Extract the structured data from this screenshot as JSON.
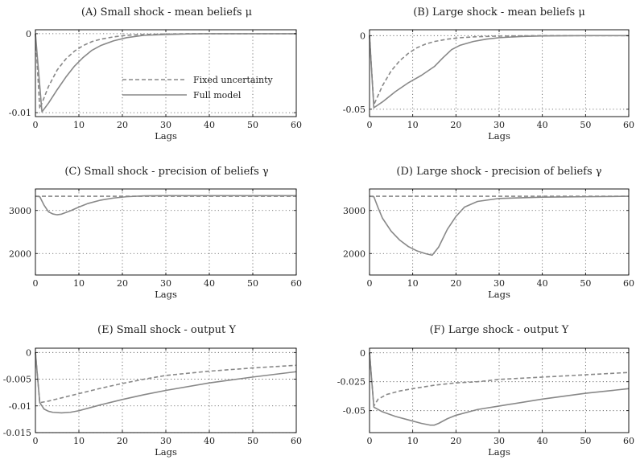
{
  "line_color": "#888888",
  "chart_data": [
    {
      "id": "A",
      "type": "line",
      "title": "(A) Small shock - mean beliefs μ",
      "xlabel": "Lags",
      "xlim": [
        0,
        60
      ],
      "ylim": [
        -0.0105,
        0.0005
      ],
      "xticks": [
        0,
        10,
        20,
        30,
        40,
        50,
        60
      ],
      "yticks": [
        {
          "v": 0,
          "label": "0"
        },
        {
          "v": -0.01,
          "label": "-0.01"
        }
      ],
      "grid": true,
      "legend": {
        "position": "right",
        "entries": [
          "Fixed uncertainty",
          "Full model"
        ]
      },
      "series": [
        {
          "name": "Fixed uncertainty",
          "style": "dashed",
          "x": [
            0,
            1,
            3,
            5,
            7,
            9,
            11,
            13,
            15,
            18,
            21,
            25,
            30,
            35,
            40,
            50,
            60
          ],
          "y": [
            0,
            -0.0095,
            -0.0067,
            -0.0046,
            -0.0032,
            -0.0022,
            -0.0015,
            -0.001,
            -0.0007,
            -0.0004,
            -0.0002,
            -0.0001,
            -4e-05,
            0,
            0,
            0,
            0
          ]
        },
        {
          "name": "Full model",
          "style": "solid",
          "x": [
            0,
            1.5,
            3,
            5,
            7,
            9,
            11,
            13,
            15,
            18,
            21,
            25,
            30,
            35,
            40,
            50,
            60
          ],
          "y": [
            0,
            -0.0099,
            -0.0088,
            -0.0071,
            -0.0055,
            -0.0041,
            -0.003,
            -0.0021,
            -0.0015,
            -0.0009,
            -0.0005,
            -0.0002,
            -0.0001,
            -3e-05,
            0,
            0,
            0
          ]
        }
      ]
    },
    {
      "id": "B",
      "type": "line",
      "title": "(B) Large shock - mean beliefs μ",
      "xlabel": "Lags",
      "xlim": [
        0,
        60
      ],
      "ylim": [
        -0.055,
        0.004
      ],
      "xticks": [
        0,
        10,
        20,
        30,
        40,
        50,
        60
      ],
      "yticks": [
        {
          "v": 0,
          "label": "0"
        },
        {
          "v": -0.05,
          "label": "-0.05"
        }
      ],
      "grid": true,
      "series": [
        {
          "name": "Fixed uncertainty",
          "style": "dashed",
          "x": [
            0,
            1,
            3,
            5,
            7,
            9,
            11,
            13,
            15,
            18,
            21,
            25,
            30,
            40,
            50,
            60
          ],
          "y": [
            0,
            -0.047,
            -0.034,
            -0.024,
            -0.017,
            -0.012,
            -0.0082,
            -0.0057,
            -0.004,
            -0.0024,
            -0.0014,
            -0.0007,
            -0.0003,
            0,
            0,
            0
          ]
        },
        {
          "name": "Full model",
          "style": "solid",
          "x": [
            0,
            1,
            3,
            6,
            9,
            12,
            15,
            17,
            19,
            21,
            24,
            27,
            30,
            35,
            40,
            50,
            60
          ],
          "y": [
            0,
            -0.049,
            -0.045,
            -0.038,
            -0.032,
            -0.027,
            -0.021,
            -0.015,
            -0.0095,
            -0.0065,
            -0.004,
            -0.0024,
            -0.0014,
            -0.0006,
            -0.0002,
            0,
            0
          ]
        }
      ]
    },
    {
      "id": "C",
      "type": "line",
      "title": "(C) Small shock - precision of beliefs γ",
      "xlabel": "Lags",
      "xlim": [
        0,
        60
      ],
      "ylim": [
        1500,
        3500
      ],
      "xticks": [
        0,
        10,
        20,
        30,
        40,
        50,
        60
      ],
      "yticks": [
        {
          "v": 3000,
          "label": "3000"
        },
        {
          "v": 2000,
          "label": "2000"
        }
      ],
      "grid": true,
      "series": [
        {
          "name": "Fixed uncertainty",
          "style": "dashed",
          "x": [
            0,
            60
          ],
          "y": [
            3330,
            3330
          ]
        },
        {
          "name": "Full model",
          "style": "solid",
          "x": [
            0,
            1,
            2,
            3,
            4,
            5,
            6,
            8,
            10,
            12,
            15,
            18,
            21,
            25,
            30,
            40,
            50,
            60
          ],
          "y": [
            3330,
            3320,
            3120,
            2970,
            2920,
            2900,
            2915,
            2990,
            3080,
            3160,
            3240,
            3290,
            3320,
            3340,
            3345,
            3345,
            3345,
            3345
          ]
        }
      ]
    },
    {
      "id": "D",
      "type": "line",
      "title": "(D) Large shock - precision of beliefs γ",
      "xlabel": "Lags",
      "xlim": [
        0,
        60
      ],
      "ylim": [
        1500,
        3500
      ],
      "xticks": [
        0,
        10,
        20,
        30,
        40,
        50,
        60
      ],
      "yticks": [
        {
          "v": 3000,
          "label": "3000"
        },
        {
          "v": 2000,
          "label": "2000"
        }
      ],
      "grid": true,
      "series": [
        {
          "name": "Fixed uncertainty",
          "style": "dashed",
          "x": [
            0,
            60
          ],
          "y": [
            3330,
            3330
          ]
        },
        {
          "name": "Full model",
          "style": "solid",
          "x": [
            0,
            1,
            2,
            3,
            5,
            7,
            9,
            11,
            13,
            14.5,
            16,
            18,
            20,
            22,
            25,
            30,
            40,
            50,
            60
          ],
          "y": [
            3330,
            3320,
            3060,
            2820,
            2520,
            2310,
            2160,
            2060,
            1995,
            1960,
            2150,
            2560,
            2860,
            3080,
            3210,
            3280,
            3310,
            3320,
            3330
          ]
        }
      ]
    },
    {
      "id": "E",
      "type": "line",
      "title": "(E) Small shock - output Y",
      "xlabel": "Lags",
      "xlim": [
        0,
        60
      ],
      "ylim": [
        -0.015,
        0.0008
      ],
      "xticks": [
        0,
        10,
        20,
        30,
        40,
        50,
        60
      ],
      "yticks": [
        {
          "v": 0,
          "label": "0"
        },
        {
          "v": -0.005,
          "label": "-0.005"
        },
        {
          "v": -0.01,
          "label": "-0.01"
        },
        {
          "v": -0.015,
          "label": "-0.015"
        }
      ],
      "grid": true,
      "series": [
        {
          "name": "Fixed uncertainty",
          "style": "dashed",
          "x": [
            0,
            1,
            3,
            5,
            10,
            15,
            20,
            25,
            30,
            40,
            50,
            60
          ],
          "y": [
            0,
            -0.0094,
            -0.0091,
            -0.0087,
            -0.0077,
            -0.0067,
            -0.0058,
            -0.005,
            -0.0043,
            -0.0035,
            -0.0029,
            -0.0024
          ]
        },
        {
          "name": "Full model",
          "style": "solid",
          "x": [
            0,
            1,
            2,
            3,
            4,
            6,
            8,
            10,
            15,
            20,
            25,
            30,
            40,
            50,
            60
          ],
          "y": [
            0,
            -0.0094,
            -0.0106,
            -0.011,
            -0.0112,
            -0.0113,
            -0.0112,
            -0.0109,
            -0.0098,
            -0.0088,
            -0.0079,
            -0.0071,
            -0.0057,
            -0.0046,
            -0.0036
          ]
        }
      ]
    },
    {
      "id": "F",
      "type": "line",
      "title": "(F) Large shock - output Y",
      "xlabel": "Lags",
      "xlim": [
        0,
        60
      ],
      "ylim": [
        -0.069,
        0.004
      ],
      "xticks": [
        0,
        10,
        20,
        30,
        40,
        50,
        60
      ],
      "yticks": [
        {
          "v": 0,
          "label": "0"
        },
        {
          "v": -0.025,
          "label": "-0.025"
        },
        {
          "v": -0.05,
          "label": "-0.05"
        }
      ],
      "grid": true,
      "series": [
        {
          "name": "Fixed uncertainty",
          "style": "dashed",
          "x": [
            0,
            1,
            2,
            4,
            7,
            10,
            15,
            20,
            25,
            30,
            40,
            50,
            60
          ],
          "y": [
            0,
            -0.046,
            -0.04,
            -0.036,
            -0.033,
            -0.031,
            -0.028,
            -0.026,
            -0.025,
            -0.023,
            -0.021,
            -0.019,
            -0.017
          ]
        },
        {
          "name": "Full model",
          "style": "solid",
          "x": [
            0,
            1,
            3,
            6,
            9,
            12,
            14,
            15,
            16,
            18,
            20,
            25,
            30,
            40,
            50,
            60
          ],
          "y": [
            0,
            -0.047,
            -0.051,
            -0.055,
            -0.058,
            -0.061,
            -0.0625,
            -0.0625,
            -0.061,
            -0.057,
            -0.054,
            -0.049,
            -0.046,
            -0.04,
            -0.035,
            -0.031
          ]
        }
      ]
    }
  ]
}
